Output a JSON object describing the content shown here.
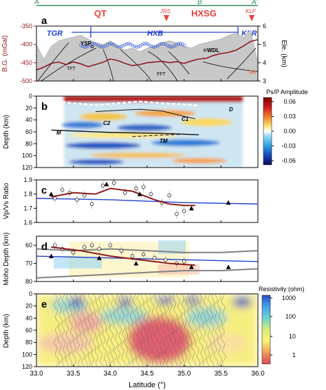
{
  "profile": {
    "top_labels": [
      "A",
      "B",
      "A'"
    ],
    "terranes": [
      "QT",
      "HXSG"
    ],
    "stations": [
      "JRS",
      "KLF"
    ],
    "faults": [
      "TGR",
      "HXB",
      "KLR"
    ],
    "features": [
      "YSP",
      "WDL",
      "TFT",
      "FFT"
    ],
    "colors": {
      "top_line": "#2e8b57",
      "station": "#e8413a",
      "terrane_label": "#e8413a",
      "fault_line": "#1f3fd1",
      "gravity": "#8b1a1a"
    }
  },
  "panels": {
    "a": {
      "letter": "a"
    },
    "b": {
      "letter": "b",
      "layer_labels": [
        "D",
        "C2",
        "C1",
        "M",
        "TM"
      ]
    },
    "c": {
      "letter": "c"
    },
    "d": {
      "letter": "d"
    },
    "e": {
      "letter": "e"
    }
  },
  "colorbars": {
    "b": {
      "title": "Ps/P Amplitude",
      "ticks": [
        "0.06",
        "0.03",
        "0.00",
        "-0.03",
        "-0.06"
      ]
    },
    "e": {
      "title": "Resistivity (ohm)",
      "ticks": [
        "1000",
        "100",
        "10",
        "1"
      ]
    }
  },
  "x_axis": {
    "label": "Latitude (°)",
    "ticks": [
      33.0,
      33.5,
      34.0,
      34.5,
      35.0,
      35.5,
      36.0
    ],
    "tick_labels": [
      "33.0",
      "33.5",
      "34.0",
      "34.5",
      "35.0",
      "35.5",
      "36.0"
    ]
  },
  "chart_data": [
    {
      "panel": "a",
      "type": "line",
      "ylabel": "B.G. (mGal)",
      "ylabel_right": "Ele. (km)",
      "ylim": [
        -500,
        -350
      ],
      "ylim_right": [
        3,
        6
      ],
      "yticks": [
        "-350",
        "-400",
        "-450",
        "-500"
      ],
      "yticks_right": [
        "6",
        "5",
        "4",
        "3"
      ],
      "series": [
        {
          "x": [
            33.0,
            33.1,
            33.2,
            33.3,
            33.4,
            33.5,
            33.6,
            33.7,
            33.8,
            33.9,
            34.0,
            34.1,
            34.2,
            34.3,
            34.4,
            34.5,
            34.6,
            34.7,
            34.8,
            34.9,
            35.0,
            35.1,
            35.2,
            35.3,
            35.4,
            35.5,
            35.6,
            35.7,
            35.8,
            35.9,
            36.0
          ],
          "y": [
            -470,
            -462,
            -452,
            -448,
            -455,
            -448,
            -453,
            -461,
            -455,
            -449,
            -440,
            -444,
            -452,
            -458,
            -455,
            -450,
            -448,
            -446,
            -450,
            -447,
            -452,
            -445,
            -440,
            -438,
            -430,
            -425,
            -422,
            -416,
            -405,
            -392,
            -387
          ]
        }
      ],
      "elevation_km": {
        "x": [
          33.0,
          33.1,
          33.2,
          33.3,
          33.4,
          33.5,
          33.6,
          33.7,
          33.8,
          33.9,
          34.0,
          34.1,
          34.2,
          34.3,
          34.4,
          34.5,
          34.6,
          34.7,
          34.8,
          34.9,
          35.0,
          35.1,
          35.2,
          35.3,
          35.4,
          35.5,
          35.6,
          35.7,
          35.8,
          35.9,
          36.0
        ],
        "y": [
          5.0,
          4.2,
          4.9,
          5.2,
          5.3,
          5.4,
          5.5,
          5.3,
          5.1,
          5.0,
          5.2,
          4.9,
          4.7,
          4.8,
          4.6,
          4.8,
          4.9,
          5.1,
          5.2,
          5.1,
          4.9,
          4.8,
          5.0,
          5.1,
          5.2,
          5.3,
          5.5,
          5.6,
          5.4,
          5.8,
          4.0
        ]
      }
    },
    {
      "panel": "b",
      "type": "heatmap",
      "ylabel": "Depth (km)",
      "ylim": [
        120,
        0
      ],
      "yticks": [
        "0",
        "20",
        "40",
        "60",
        "80",
        "100",
        "120"
      ],
      "xlim": [
        33.2,
        35.2
      ],
      "interfaces": [
        {
          "name": "D",
          "x": [
            33.2,
            33.5,
            33.8,
            34.1,
            34.4,
            34.7,
            35.0,
            35.2
          ],
          "y": [
            8,
            12,
            15,
            12,
            9,
            12,
            14,
            16
          ]
        },
        {
          "name": "C1",
          "x": [
            33.8,
            34.1,
            34.4,
            34.7,
            35.0,
            35.15
          ],
          "y": [
            26,
            24,
            22,
            25,
            34,
            38
          ]
        },
        {
          "name": "M",
          "x": [
            33.2,
            33.6,
            34.0,
            34.4,
            34.8,
            35.2
          ],
          "y": [
            57,
            59,
            61,
            62,
            63,
            65
          ]
        },
        {
          "name": "TM",
          "x": [
            34.3,
            34.6,
            35.0,
            35.2
          ],
          "y": [
            68,
            66,
            64,
            65
          ]
        }
      ]
    },
    {
      "panel": "c",
      "type": "scatter",
      "ylabel": "Vp/Vs Ratio",
      "ylim": [
        1.6,
        1.9
      ],
      "yticks": [
        "1.9",
        "1.8",
        "1.7",
        "1.6"
      ],
      "circles": {
        "x": [
          33.25,
          33.35,
          33.45,
          33.55,
          33.65,
          33.75,
          33.9,
          34.05,
          34.2,
          34.35,
          34.45,
          34.55,
          34.7,
          34.8,
          34.9,
          35.0
        ],
        "y": [
          1.77,
          1.83,
          1.81,
          1.76,
          1.79,
          1.73,
          1.86,
          1.88,
          1.81,
          1.84,
          1.85,
          1.8,
          1.74,
          1.79,
          1.66,
          1.68
        ]
      },
      "triangles": {
        "x": [
          33.2,
          33.95,
          34.4,
          35.1,
          35.6
        ],
        "y": [
          1.8,
          1.87,
          1.8,
          1.7,
          1.74
        ]
      },
      "fit_line": {
        "x": [
          33.2,
          33.5,
          33.8,
          34.0,
          34.3,
          34.6,
          34.8,
          35.0,
          35.15
        ],
        "y": [
          1.78,
          1.81,
          1.8,
          1.84,
          1.82,
          1.76,
          1.73,
          1.72,
          1.72
        ]
      },
      "reference_line": {
        "x": [
          33.0,
          34.0,
          35.0,
          36.0
        ],
        "y": [
          1.77,
          1.76,
          1.74,
          1.73
        ]
      }
    },
    {
      "panel": "d",
      "type": "scatter",
      "ylabel": "Moho Depth (km)",
      "ylim": [
        80,
        55
      ],
      "yticks": [
        "60",
        "70",
        "80"
      ],
      "circles": {
        "x": [
          33.25,
          33.35,
          33.5,
          33.65,
          33.75,
          33.85,
          34.0,
          34.15,
          34.3,
          34.45,
          34.6,
          34.75,
          34.9,
          35.0
        ],
        "y": [
          60,
          62,
          64,
          61,
          60,
          62,
          60,
          63,
          66,
          65,
          67,
          68,
          70,
          69
        ]
      },
      "triangles": {
        "x": [
          33.2,
          33.85,
          34.35,
          35.1,
          35.6
        ],
        "y": [
          66,
          67,
          70,
          72,
          72
        ]
      },
      "fit_line": {
        "x": [
          33.2,
          33.6,
          34.0,
          34.4,
          34.8,
          35.15
        ],
        "y": [
          61,
          63,
          66,
          68,
          70,
          71
        ]
      },
      "reference_line": {
        "x": [
          33.0,
          34.0,
          35.0,
          36.0
        ],
        "y": [
          66,
          67,
          68,
          69
        ]
      },
      "grey_lines": [
        {
          "x": [
            33.0,
            33.5,
            34.0,
            34.5,
            35.0,
            35.5,
            36.0
          ],
          "y": [
            62,
            63,
            62,
            63,
            64,
            64,
            63
          ]
        },
        {
          "x": [
            33.0,
            33.5,
            34.0,
            34.5,
            35.0,
            35.5,
            36.0
          ],
          "y": [
            78,
            77,
            76,
            75,
            74,
            74,
            73
          ]
        }
      ]
    },
    {
      "panel": "e",
      "type": "heatmap",
      "ylabel": "Depth (km)",
      "ylim": [
        120,
        0
      ],
      "yticks": [
        "0",
        "20",
        "40",
        "60",
        "80",
        "100",
        "120"
      ]
    }
  ]
}
